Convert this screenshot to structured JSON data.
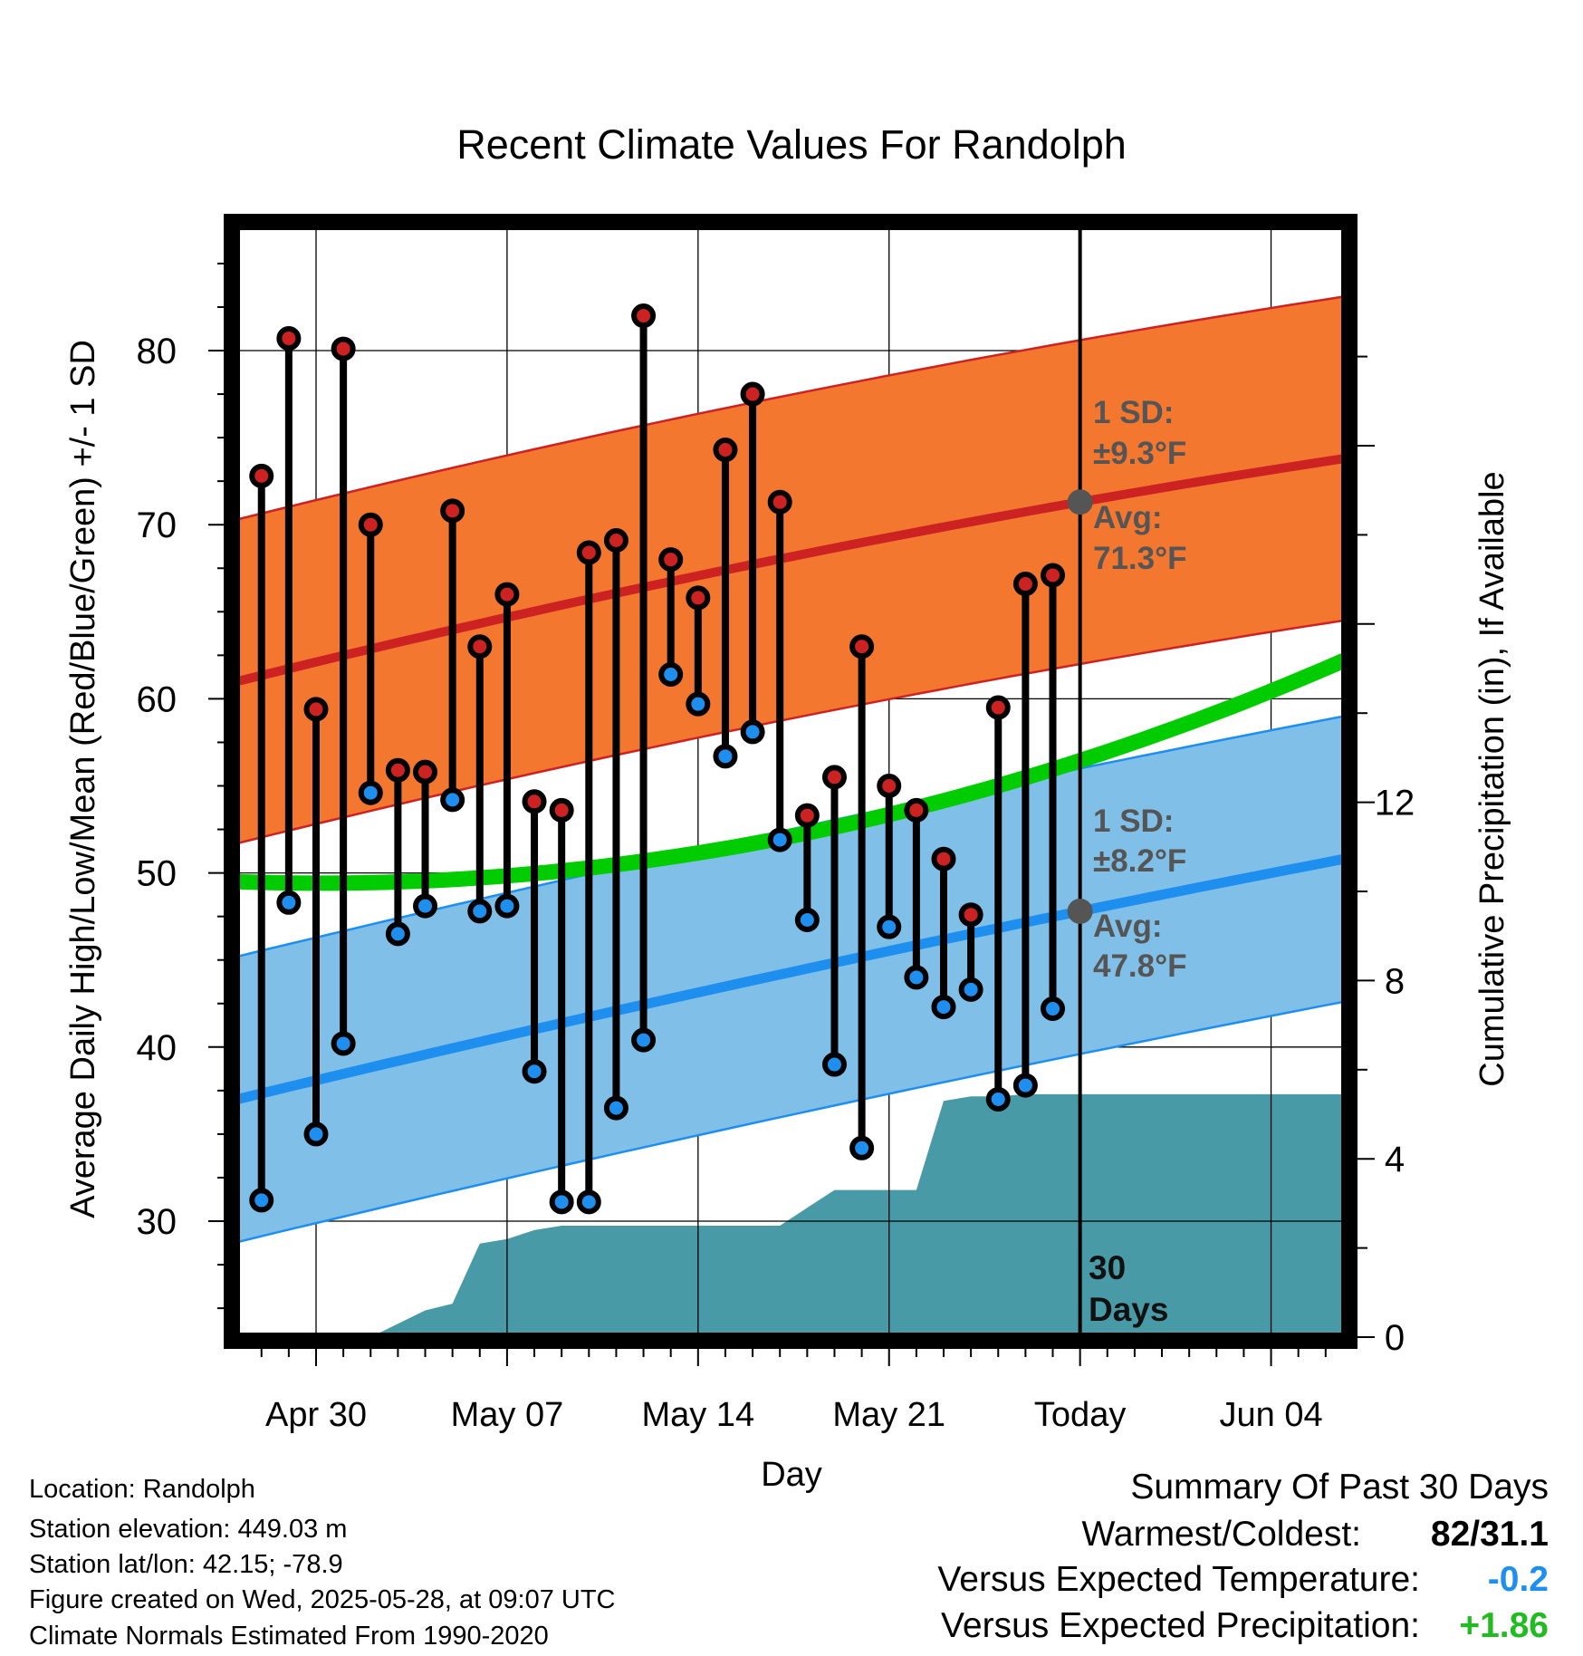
{
  "title": "Recent Climate Values For Randolph",
  "chart_data": {
    "type": "line",
    "title": "Recent Climate Values For Randolph",
    "xlabel": "Day",
    "ylabel": "Average Daily High/Low/Mean (Red/Blue/Green) +/- 1 SD",
    "y2label": "Cumulative Precipitation (in), If Available",
    "x_ticks": [
      "Apr 30",
      "May 07",
      "May 14",
      "May 21",
      "Today",
      "Jun 04"
    ],
    "ylim": [
      23.5,
      87
    ],
    "y_ticks": [
      30,
      40,
      50,
      60,
      70,
      80
    ],
    "y2lim": [
      0,
      21.5
    ],
    "y2_ticks": [
      0,
      4,
      8,
      12
    ],
    "grid": true,
    "days": [
      {
        "date": "Apr 28",
        "high": 72.8,
        "low": 31.2
      },
      {
        "date": "Apr 29",
        "high": 80.7,
        "low": 48.3
      },
      {
        "date": "Apr 30",
        "high": 59.4,
        "low": 35.0
      },
      {
        "date": "May 01",
        "high": 80.1,
        "low": 40.2
      },
      {
        "date": "May 02",
        "high": 70.0,
        "low": 54.6
      },
      {
        "date": "May 03",
        "high": 55.9,
        "low": 46.5
      },
      {
        "date": "May 04",
        "high": 55.8,
        "low": 48.1
      },
      {
        "date": "May 05",
        "high": 70.8,
        "low": 54.2
      },
      {
        "date": "May 06",
        "high": 63.0,
        "low": 47.8
      },
      {
        "date": "May 07",
        "high": 66.0,
        "low": 48.1
      },
      {
        "date": "May 08",
        "high": 54.1,
        "low": 38.6
      },
      {
        "date": "May 09",
        "high": 53.6,
        "low": 31.1
      },
      {
        "date": "May 10",
        "high": 68.4,
        "low": 31.1
      },
      {
        "date": "May 11",
        "high": 69.1,
        "low": 36.5
      },
      {
        "date": "May 12",
        "high": 82.0,
        "low": 40.4
      },
      {
        "date": "May 13",
        "high": 68.0,
        "low": 61.4
      },
      {
        "date": "May 14",
        "high": 65.8,
        "low": 59.7
      },
      {
        "date": "May 15",
        "high": 74.3,
        "low": 56.7
      },
      {
        "date": "May 16",
        "high": 77.5,
        "low": 58.1
      },
      {
        "date": "May 17",
        "high": 71.3,
        "low": 51.9
      },
      {
        "date": "May 18",
        "high": 53.3,
        "low": 47.3
      },
      {
        "date": "May 19",
        "high": 55.5,
        "low": 39.0
      },
      {
        "date": "May 20",
        "high": 63.0,
        "low": 34.2
      },
      {
        "date": "May 21",
        "high": 55.0,
        "low": 46.9
      },
      {
        "date": "May 22",
        "high": 53.6,
        "low": 44.0
      },
      {
        "date": "May 23",
        "high": 50.8,
        "low": 42.3
      },
      {
        "date": "May 24",
        "high": 47.6,
        "low": 43.3
      },
      {
        "date": "May 25",
        "high": 59.5,
        "low": 37.0
      },
      {
        "date": "May 26",
        "high": 66.6,
        "low": 37.8
      },
      {
        "date": "May 27",
        "high": 67.1,
        "low": 42.2
      }
    ],
    "normal_high": {
      "name": "Average high",
      "start": 61.0,
      "today": 71.3,
      "end": 73.8,
      "sd": 9.3
    },
    "normal_low": {
      "name": "Average low",
      "start": 37.0,
      "today": 47.8,
      "end": 50.8,
      "sd": 8.2
    },
    "normal_mean": {
      "start": 49.5,
      "end": 62.2
    },
    "cumulative_precip": [
      0,
      0,
      0,
      0.3,
      0.6,
      0.75,
      2.1,
      2.2,
      2.4,
      2.5,
      2.5,
      2.5,
      2.5,
      2.5,
      2.5,
      2.5,
      2.5,
      2.5,
      2.9,
      3.3,
      3.3,
      3.3,
      3.3,
      5.3,
      5.4,
      5.4,
      5.45,
      5.45,
      5.45,
      5.45,
      5.45
    ],
    "precip_after_today": 5.45,
    "colors": {
      "high": "#cc2222",
      "high_band": "#f47730",
      "low": "#1e8fef",
      "low_band": "#80c0e8",
      "mean": "#00cc00",
      "precip": "#489aa6",
      "high_marker": "#cc2222",
      "low_marker": "#1e8fef",
      "annotation": "#555555"
    }
  },
  "annotations": {
    "high_sd_line1": "1 SD:",
    "high_sd_line2": "±9.3°F",
    "high_avg_line1": "Avg:",
    "high_avg_line2": "71.3°F",
    "low_sd_line1": "1 SD:",
    "low_sd_line2": "±8.2°F",
    "low_avg_line1": "Avg:",
    "low_avg_line2": "47.8°F",
    "days_line1": "30",
    "days_line2": "Days"
  },
  "station_info": {
    "location": "Location: Randolph",
    "elevation": "Station elevation: 449.03 m",
    "latlon": "Station lat/lon: 42.15; -78.9",
    "created": "Figure created on Wed, 2025-05-28, at 09:07 UTC",
    "normals": "Climate Normals Estimated From 1990-2020"
  },
  "summary": {
    "heading": "Summary Of Past 30 Days",
    "warmest_label": "Warmest/Coldest:",
    "warmest_value": "82/31.1",
    "temp_label": "Versus Expected Temperature:",
    "temp_value": "-0.2",
    "temp_color": "#1e8fef",
    "precip_label": "Versus Expected Precipitation:",
    "precip_value": "+1.86",
    "precip_color": "#22bb22"
  }
}
